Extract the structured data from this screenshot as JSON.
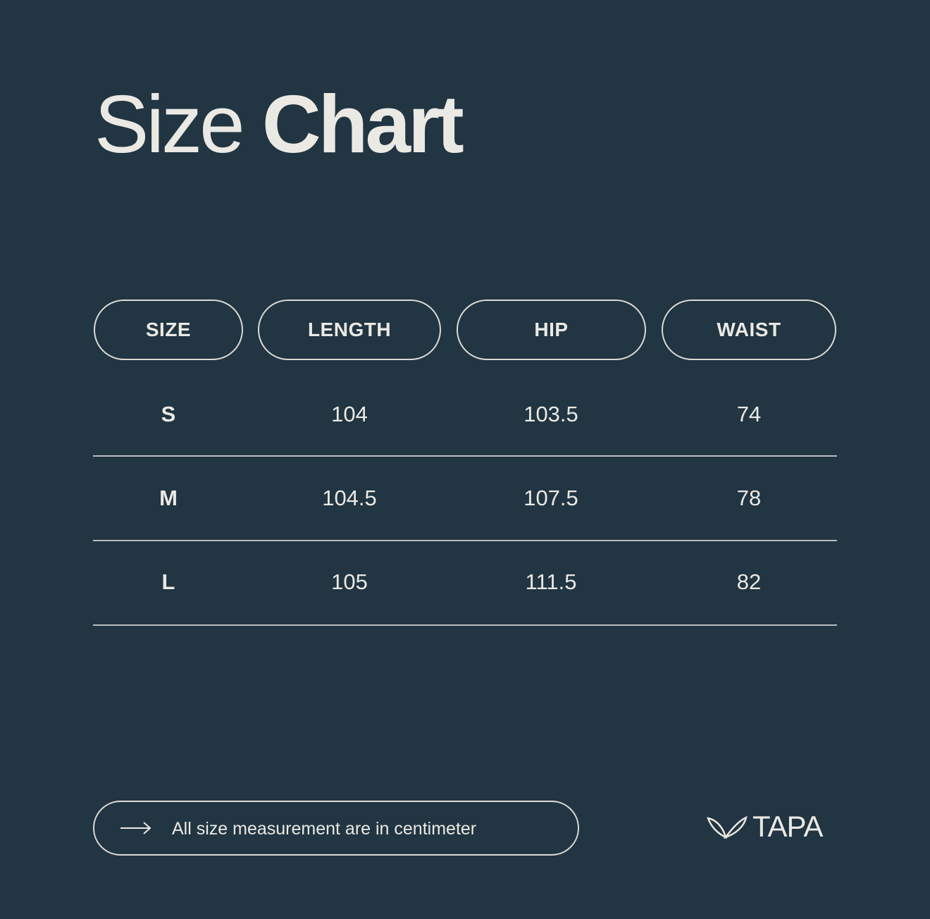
{
  "title": {
    "light": "Size",
    "bold": "Chart"
  },
  "table": {
    "headers": [
      "SIZE",
      "LENGTH",
      "HIP",
      "WAIST"
    ],
    "rows": [
      [
        "S",
        "104",
        "103.5",
        "74"
      ],
      [
        "M",
        "104.5",
        "107.5",
        "78"
      ],
      [
        "L",
        "105",
        "111.5",
        "82"
      ]
    ]
  },
  "note": {
    "icon": "arrow-right-icon",
    "text": "All size measurement are in centimeter"
  },
  "brand": {
    "name": "TAPA",
    "icon": "leaf-logo-icon"
  },
  "colors": {
    "background": "#213542",
    "text": "#ebe9e4"
  }
}
